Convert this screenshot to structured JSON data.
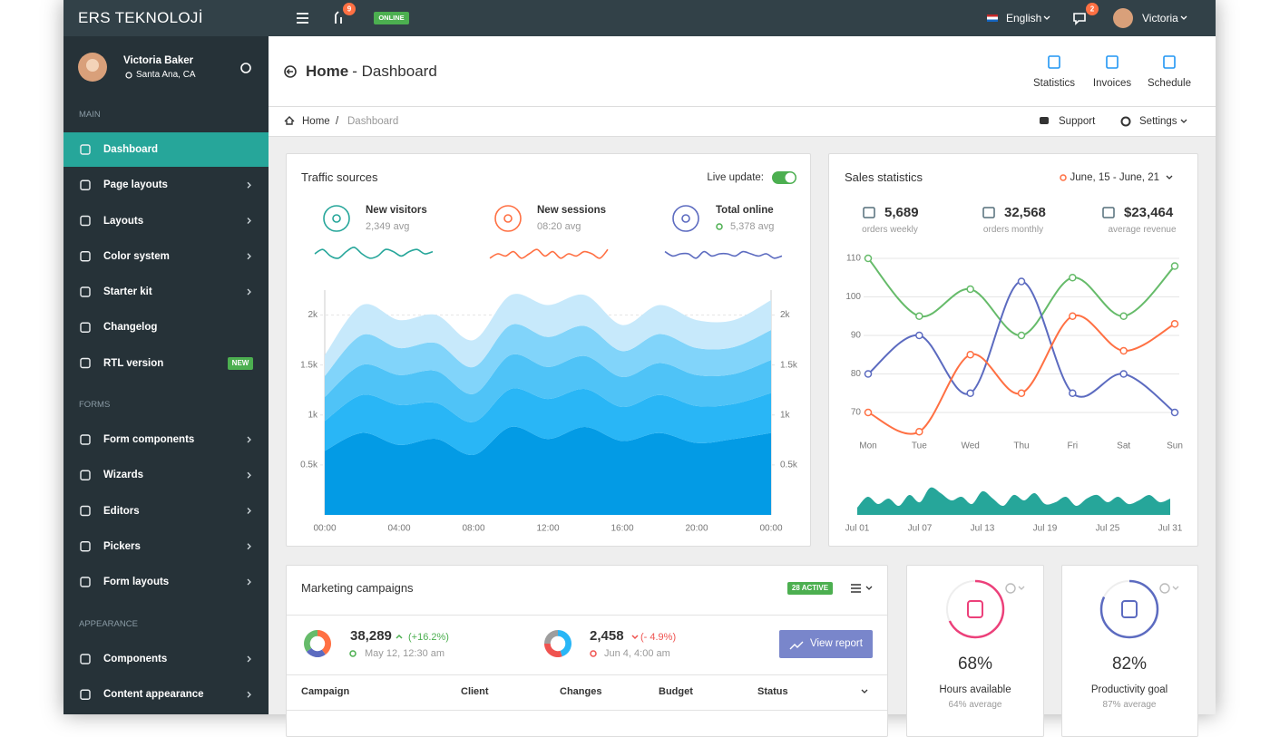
{
  "header": {
    "brand": "ERS TEKNOLOJİ",
    "notifications": "9",
    "status": "ONLINE",
    "language": "English",
    "messages": "2",
    "user": "Victoria"
  },
  "sidebar": {
    "user": {
      "name": "Victoria Baker",
      "location": "Santa Ana, CA"
    },
    "sections": [
      {
        "title": "MAIN",
        "items": [
          {
            "label": "Dashboard"
          },
          {
            "label": "Page layouts"
          },
          {
            "label": "Layouts"
          },
          {
            "label": "Color system"
          },
          {
            "label": "Starter kit"
          },
          {
            "label": "Changelog"
          },
          {
            "label": "RTL version",
            "badge": "NEW"
          }
        ]
      },
      {
        "title": "FORMS",
        "items": [
          {
            "label": "Form components"
          },
          {
            "label": "Wizards"
          },
          {
            "label": "Editors"
          },
          {
            "label": "Pickers"
          },
          {
            "label": "Form layouts"
          }
        ]
      },
      {
        "title": "APPEARANCE",
        "items": [
          {
            "label": "Components"
          },
          {
            "label": "Content appearance"
          }
        ]
      }
    ]
  },
  "page_header": {
    "title_bold": "Home",
    "title_rest": "- Dashboard",
    "actions": [
      "Statistics",
      "Invoices",
      "Schedule"
    ]
  },
  "breadcrumb": {
    "items": [
      "Home",
      "Dashboard"
    ],
    "separator": "/",
    "actions": [
      "Support",
      "Settings"
    ]
  },
  "traffic": {
    "title": "Traffic sources",
    "live_label": "Live update:",
    "stats": [
      {
        "label": "New visitors",
        "sub": "2,349 avg"
      },
      {
        "label": "New sessions",
        "sub": "08:20 avg"
      },
      {
        "label": "Total online",
        "sub": "5,378 avg"
      }
    ]
  },
  "sales": {
    "title": "Sales statistics",
    "range": "June, 15 - June, 21",
    "stats": [
      {
        "value": "5,689",
        "label": "orders weekly"
      },
      {
        "value": "32,568",
        "label": "orders monthly"
      },
      {
        "value": "$23,464",
        "label": "average revenue"
      }
    ]
  },
  "marketing": {
    "title": "Marketing campaigns",
    "badge": "28 ACTIVE",
    "stats": [
      {
        "value": "38,289",
        "change": "(+16.2%)",
        "date": "May 12, 12:30 am"
      },
      {
        "value": "2,458",
        "change": "(- 4.9%)",
        "date": "Jun 4, 4:00 am"
      }
    ],
    "button": "View report",
    "columns": [
      "Campaign",
      "Client",
      "Changes",
      "Budget",
      "Status"
    ]
  },
  "cards": [
    {
      "value": 68,
      "value_label": "68%",
      "title": "Hours available",
      "sub": "64% average",
      "color": "#ec407a"
    },
    {
      "value": 82,
      "value_label": "82%",
      "title": "Productivity goal",
      "sub": "87% average",
      "color": "#5c6bc0"
    }
  ],
  "chart_data": [
    {
      "type": "area",
      "stacked": true,
      "grid": true,
      "x": [
        0,
        2,
        4,
        6,
        8,
        10,
        12,
        14,
        16,
        18,
        20,
        22,
        24
      ],
      "xlim": [
        0,
        24
      ],
      "xticks": [
        {
          "value": 0,
          "label": "00:00"
        },
        {
          "value": 4,
          "label": "04:00"
        },
        {
          "value": 8,
          "label": "08:00"
        },
        {
          "value": 12,
          "label": "12:00"
        },
        {
          "value": 16,
          "label": "16:00"
        },
        {
          "value": 20,
          "label": "20:00"
        },
        {
          "value": 24,
          "label": "00:00"
        }
      ],
      "ylim": [
        0,
        2250
      ],
      "yticks": [
        {
          "value": 500,
          "label": "0.5k"
        },
        {
          "value": 1000,
          "label": "1k"
        },
        {
          "value": 1500,
          "label": "1.5k"
        },
        {
          "value": 2000,
          "label": "2k"
        }
      ],
      "y2lim": [
        0,
        2250
      ],
      "y2ticks": [
        {
          "value": 500,
          "label": "0.5k"
        },
        {
          "value": 1000,
          "label": "1k"
        },
        {
          "value": 1500,
          "label": "1.5k"
        },
        {
          "value": 2000,
          "label": "2k"
        }
      ],
      "series": [
        {
          "color": "#039be5",
          "values": [
            640,
            820,
            700,
            760,
            600,
            880,
            760,
            880,
            740,
            820,
            720,
            760,
            820
          ]
        },
        {
          "color": "#29b6f6",
          "values": [
            300,
            380,
            400,
            360,
            330,
            380,
            400,
            380,
            340,
            380,
            370,
            350,
            400
          ]
        },
        {
          "color": "#4fc3f7",
          "values": [
            240,
            300,
            300,
            320,
            280,
            340,
            320,
            330,
            300,
            320,
            310,
            300,
            330
          ]
        },
        {
          "color": "#81d4fa",
          "values": [
            210,
            300,
            270,
            280,
            270,
            300,
            300,
            300,
            260,
            290,
            270,
            270,
            300
          ]
        },
        {
          "color": "#c7e9fb",
          "values": [
            210,
            300,
            280,
            280,
            270,
            300,
            320,
            310,
            260,
            290,
            280,
            270,
            300
          ]
        }
      ]
    },
    {
      "type": "line",
      "grid": true,
      "categories": [
        "Mon",
        "Tue",
        "Wed",
        "Thu",
        "Fri",
        "Sat",
        "Sun"
      ],
      "ylim": [
        63,
        112
      ],
      "yticks": [
        70,
        80,
        90,
        100,
        110
      ],
      "series": [
        {
          "color": "#66bb6a",
          "values": [
            110,
            95,
            102,
            90,
            105,
            95,
            108
          ]
        },
        {
          "color": "#5c6bc0",
          "values": [
            80,
            90,
            75,
            104,
            75,
            80,
            70
          ]
        },
        {
          "color": "#ff7043",
          "values": [
            70,
            65,
            85,
            75,
            95,
            86,
            93
          ]
        }
      ]
    },
    {
      "type": "area",
      "color": "#26a69a",
      "ylim": [
        0,
        40
      ],
      "categories": [
        "Jul 01",
        null,
        null,
        null,
        null,
        null,
        "Jul 07",
        null,
        null,
        null,
        null,
        null,
        "Jul 13",
        null,
        null,
        null,
        null,
        null,
        "Jul 19",
        null,
        null,
        null,
        null,
        null,
        "Jul 25",
        null,
        null,
        null,
        null,
        null,
        "Jul 31"
      ],
      "values": [
        8,
        20,
        12,
        18,
        10,
        22,
        14,
        30,
        24,
        16,
        20,
        12,
        26,
        18,
        10,
        22,
        16,
        24,
        12,
        14,
        20,
        10,
        18,
        22,
        14,
        20,
        12,
        16,
        22,
        14,
        18
      ]
    },
    {
      "type": "line",
      "color": "#26a69a",
      "ylim": [
        0,
        10
      ],
      "values": [
        5,
        7,
        4,
        3,
        6,
        8,
        5,
        3,
        4,
        7,
        6,
        4,
        6,
        7,
        5,
        6
      ]
    },
    {
      "type": "line",
      "color": "#ff7043",
      "ylim": [
        0,
        10
      ],
      "values": [
        3,
        5,
        4,
        6,
        3,
        5,
        7,
        4,
        6,
        3,
        5,
        4,
        6,
        5,
        3,
        7
      ]
    },
    {
      "type": "line",
      "color": "#5c6bc0",
      "ylim": [
        0,
        10
      ],
      "values": [
        6,
        4,
        5,
        5,
        3,
        6,
        4,
        5,
        5,
        4,
        6,
        5,
        4,
        5,
        3,
        4
      ]
    },
    {
      "type": "pie",
      "values": [
        40,
        25,
        35
      ],
      "colors": [
        "#ff7043",
        "#5c6bc0",
        "#66bb6a"
      ]
    },
    {
      "type": "pie",
      "values": [
        45,
        30,
        25
      ],
      "colors": [
        "#29b6f6",
        "#ef5350",
        "#9e9e9e"
      ]
    }
  ]
}
